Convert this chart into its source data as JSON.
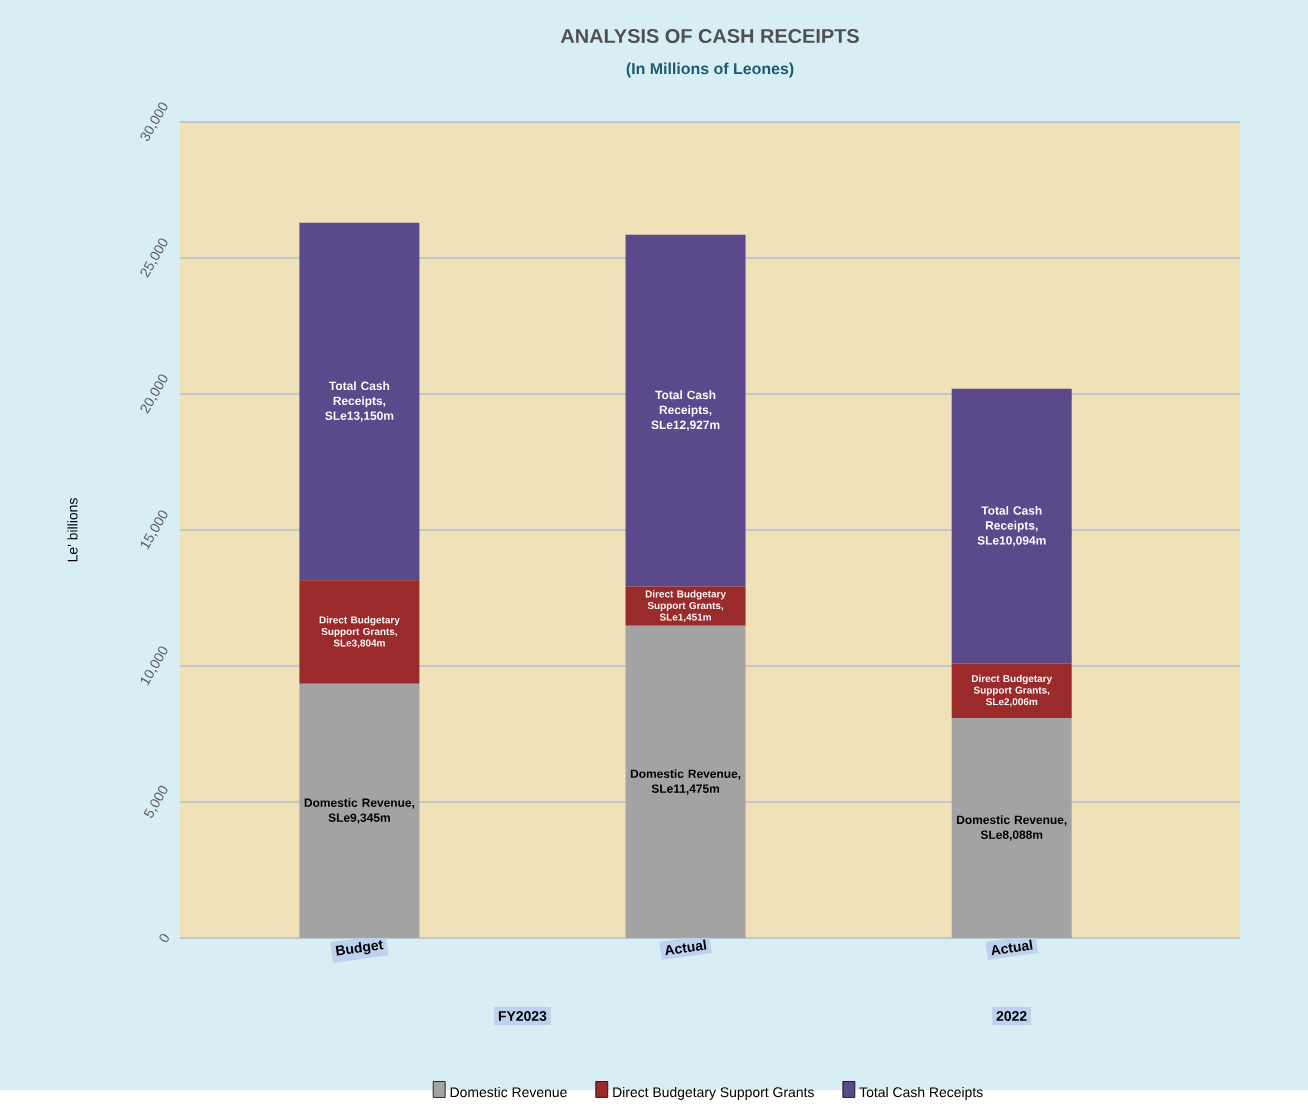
{
  "chart_data": {
    "type": "bar",
    "stacked": true,
    "title": "ANALYSIS OF CASH RECEIPTS",
    "subtitle": "(In Millions of Leones)",
    "ylabel": "Le' billions",
    "categories": [
      "Budget",
      "Actual",
      "Actual"
    ],
    "series": [
      {
        "name": "Domestic Revenue",
        "color": "#a3a3a3",
        "values": [
          9345,
          11475,
          8088
        ],
        "value_labels": [
          "Domestic Revenue, SLe9,345m",
          "Domestic Revenue, SLe11,475m",
          "Domestic Revenue, SLe8,088m"
        ]
      },
      {
        "name": "Direct Budgetary Support Grants",
        "color": "#9b2a2a",
        "values": [
          3804,
          1451,
          2006
        ],
        "value_labels": [
          "Direct Budgetary Support Grants, SLe3,804m",
          "Direct Budgetary Support Grants, SLe1,451m",
          "Direct Budgetary Support Grants, SLe2,006m"
        ]
      },
      {
        "name": "Total Cash Receipts",
        "color": "#5a4a8c",
        "values": [
          13150,
          12927,
          10094
        ],
        "value_labels": [
          "Total Cash Receipts, SLe13,150m",
          "Total Cash Receipts, SLe12,927m",
          "Total Cash Receipts, SLe10,094m"
        ]
      }
    ],
    "ylim": [
      0,
      30000
    ],
    "yticks": [
      {
        "value": 0,
        "label": "0"
      },
      {
        "value": 5000,
        "label": "5,000"
      },
      {
        "value": 10000,
        "label": "10,000"
      },
      {
        "value": 15000,
        "label": "15,000"
      },
      {
        "value": 20000,
        "label": "20,000"
      },
      {
        "value": 25000,
        "label": "25,000"
      },
      {
        "value": 30000,
        "label": "30,000"
      }
    ],
    "grid": "y",
    "legend": "bottom",
    "annotations": [
      "FY2023",
      "2022"
    ]
  }
}
